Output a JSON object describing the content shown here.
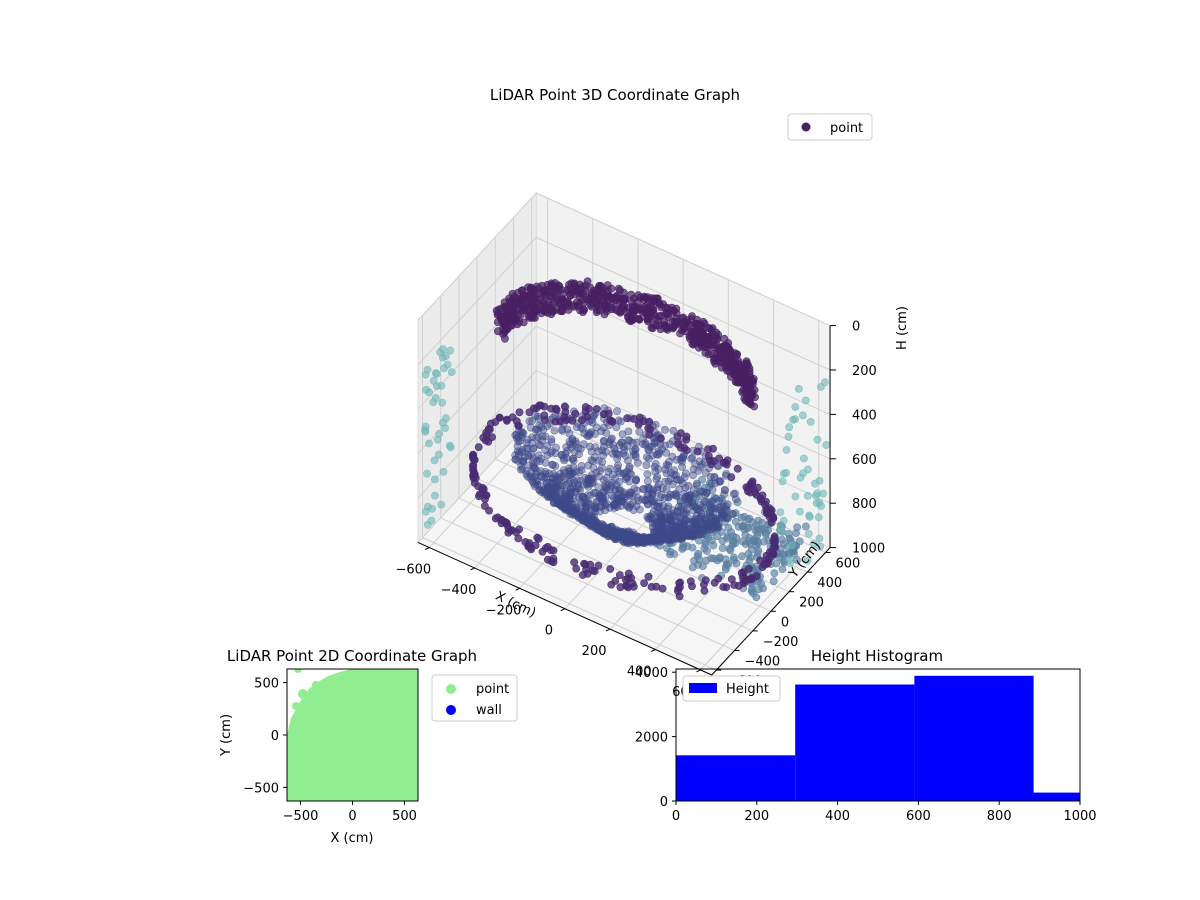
{
  "chart_data": [
    {
      "type": "scatter",
      "title": "LiDAR Point 3D Coordinate Graph",
      "xlabel": "X (cm)",
      "ylabel": "Y (cm)",
      "zlabel": "H (cm)",
      "xlim": [
        -650,
        650
      ],
      "ylim": [
        -650,
        650
      ],
      "zlim": [
        1000,
        0
      ],
      "xticks": [
        "−600",
        "−400",
        "−200",
        "0",
        "200",
        "400",
        "600"
      ],
      "yticks": [
        "−600",
        "−400",
        "−200",
        "0",
        "200",
        "400",
        "600"
      ],
      "zticks": [
        "0",
        "200",
        "400",
        "600",
        "800",
        "1000"
      ],
      "legend": {
        "position": "top-right",
        "entries": [
          "point"
        ]
      },
      "colormap": "viridis",
      "grid": true,
      "series": [
        {
          "name": "point",
          "structure": "upper ring",
          "radius_cm": 520,
          "height_cm": [
            150,
            280
          ],
          "color": "#471f63"
        },
        {
          "name": "point",
          "structure": "mid ring",
          "radius_cm": 620,
          "height_cm": [
            760,
            840
          ],
          "color": "#482c73"
        },
        {
          "name": "point",
          "structure": "bowl",
          "radius_cm": [
            120,
            460
          ],
          "height_cm": [
            600,
            900
          ],
          "color": "#3e4a89"
        },
        {
          "name": "point",
          "structure": "floor patch",
          "x_cm": [
            100,
            600
          ],
          "y_cm": [
            0,
            600
          ],
          "height_cm": [
            900,
            1000
          ],
          "color": "#5a7fa1"
        },
        {
          "name": "point",
          "structure": "side walls",
          "height_cm": [
            200,
            1000
          ],
          "color": "#6fb8b5"
        }
      ]
    },
    {
      "type": "scatter",
      "title": "LiDAR Point 2D Coordinate Graph",
      "xlabel": "X (cm)",
      "ylabel": "Y (cm)",
      "xlim": [
        -630,
        630
      ],
      "ylim": [
        -630,
        630
      ],
      "xticks": [
        "−500",
        "0",
        "500"
      ],
      "yticks": [
        "−500",
        "0",
        "500"
      ],
      "legend": {
        "position": "right",
        "entries": [
          "point",
          "wall"
        ]
      },
      "series": [
        {
          "name": "point",
          "color": "#90ee90"
        },
        {
          "name": "wall",
          "color": "#0000ff"
        }
      ]
    },
    {
      "type": "bar",
      "title": "Height Histogram",
      "xlim": [
        0,
        1000
      ],
      "ylim": [
        0,
        4100
      ],
      "xticks": [
        "0",
        "200",
        "400",
        "600",
        "800",
        "1000"
      ],
      "yticks": [
        "0",
        "2000",
        "4000"
      ],
      "legend": {
        "position": "top-left",
        "entries": [
          "Height"
        ]
      },
      "series": [
        {
          "name": "Height",
          "color": "#0000ff",
          "bins": [
            0,
            295,
            590,
            885,
            1000
          ],
          "values": [
            1420,
            3620,
            3890,
            260
          ]
        }
      ]
    }
  ]
}
